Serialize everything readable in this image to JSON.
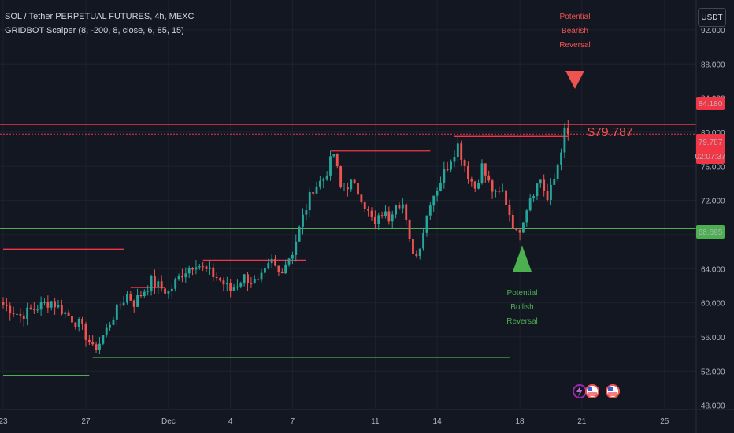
{
  "header": {
    "line1": "SOL / Tether PERPETUAL FUTURES, 4h, MEXC",
    "line2": "GRIDBOT Scalper (8, -200, 8, close, 6, 85, 15)"
  },
  "currency_button": "USDT",
  "colors": {
    "bg": "#131722",
    "up": "#26a69a",
    "down": "#ef5350",
    "green_line": "#4caf50",
    "red_line": "#f23645",
    "grid": "#1e222d"
  },
  "price_tags": {
    "last_price": "79.787",
    "countdown": "02:07:37",
    "upper_level": "84.180",
    "lower_level": "68.695",
    "chart_price_label": "$79.787"
  },
  "annotations": {
    "bearish": [
      "Potential",
      "Bearish",
      "Reversal"
    ],
    "bullish": [
      "Potential",
      "Bullish",
      "Reversal"
    ]
  },
  "bottom_icons": [
    "lightning-icon",
    "us-flag-icon",
    "us-flag-icon"
  ],
  "chart_data": {
    "type": "candlestick",
    "ylim": [
      47.5,
      95.5
    ],
    "yticks": [
      48,
      52,
      56,
      60,
      64,
      68,
      72,
      76,
      80,
      84,
      88,
      92
    ],
    "ytick_labels": [
      "48.000",
      "52.000",
      "56.000",
      "60.000",
      "64.000",
      "68.000",
      "72.000",
      "76.000",
      "80.000",
      "84.000",
      "88.000",
      "92.000"
    ],
    "xticks": [
      "23",
      "27",
      "Dec",
      "4",
      "7",
      "11",
      "14",
      "18",
      "21",
      "25"
    ],
    "xtick_index": [
      0,
      24,
      48,
      66,
      84,
      108,
      126,
      150,
      168,
      192
    ],
    "xlim": [
      0,
      198
    ],
    "waypoints": [
      [
        0,
        59.8
      ],
      [
        5,
        58.5
      ],
      [
        10,
        59.5
      ],
      [
        14,
        60.2
      ],
      [
        18,
        58.8
      ],
      [
        22,
        57.5
      ],
      [
        25,
        55.5
      ],
      [
        26,
        54.5
      ],
      [
        28,
        55.3
      ],
      [
        32,
        58.5
      ],
      [
        36,
        61.0
      ],
      [
        38,
        60.0
      ],
      [
        43,
        62.5
      ],
      [
        48,
        61.2
      ],
      [
        52,
        63.5
      ],
      [
        56,
        64.8
      ],
      [
        58,
        64.0
      ],
      [
        62,
        63.0
      ],
      [
        66,
        61.5
      ],
      [
        70,
        63.0
      ],
      [
        74,
        62.2
      ],
      [
        78,
        64.8
      ],
      [
        80,
        63.5
      ],
      [
        84,
        66.0
      ],
      [
        87,
        70.0
      ],
      [
        90,
        73.5
      ],
      [
        93,
        74.5
      ],
      [
        96,
        77.5
      ],
      [
        98,
        73.5
      ],
      [
        101,
        74.0
      ],
      [
        104,
        72.5
      ],
      [
        106,
        70.5
      ],
      [
        108,
        69.0
      ],
      [
        110,
        70.5
      ],
      [
        112,
        70.0
      ],
      [
        114,
        72.0
      ],
      [
        116,
        71.5
      ],
      [
        118,
        67.0
      ],
      [
        120,
        65.5
      ],
      [
        122,
        68.5
      ],
      [
        124,
        72.0
      ],
      [
        126,
        73.5
      ],
      [
        130,
        77.0
      ],
      [
        132,
        78.5
      ],
      [
        135,
        75.0
      ],
      [
        137,
        73.5
      ],
      [
        139,
        76.0
      ],
      [
        141,
        74.0
      ],
      [
        143,
        72.5
      ],
      [
        145,
        73.0
      ],
      [
        147,
        70.5
      ],
      [
        149,
        68.0
      ],
      [
        150,
        68.8
      ],
      [
        153,
        72.5
      ],
      [
        156,
        74.5
      ],
      [
        158,
        72.0
      ],
      [
        160,
        74.5
      ],
      [
        163,
        80.0
      ],
      [
        164,
        79.8
      ]
    ],
    "levels": {
      "upper_resistance": 80.9,
      "current_price": 79.787,
      "support": 68.695,
      "lower_support": 53.6
    },
    "indicator_segments": [
      {
        "color": "red",
        "y": 77.8,
        "from": 95,
        "to": 124
      },
      {
        "color": "red",
        "y": 79.5,
        "from": 131,
        "to": 164
      },
      {
        "color": "red",
        "y": 61.8,
        "from": 37,
        "to": 47
      },
      {
        "color": "red",
        "y": 65.0,
        "from": 58,
        "to": 88
      },
      {
        "color": "red",
        "y": 66.3,
        "from": 0,
        "to": 35
      },
      {
        "color": "green",
        "y": 68.7,
        "from": 148,
        "to": 164
      },
      {
        "color": "green",
        "y": 53.6,
        "from": 26,
        "to": 147
      },
      {
        "color": "green",
        "y": 51.5,
        "from": 0,
        "to": 25
      }
    ]
  }
}
